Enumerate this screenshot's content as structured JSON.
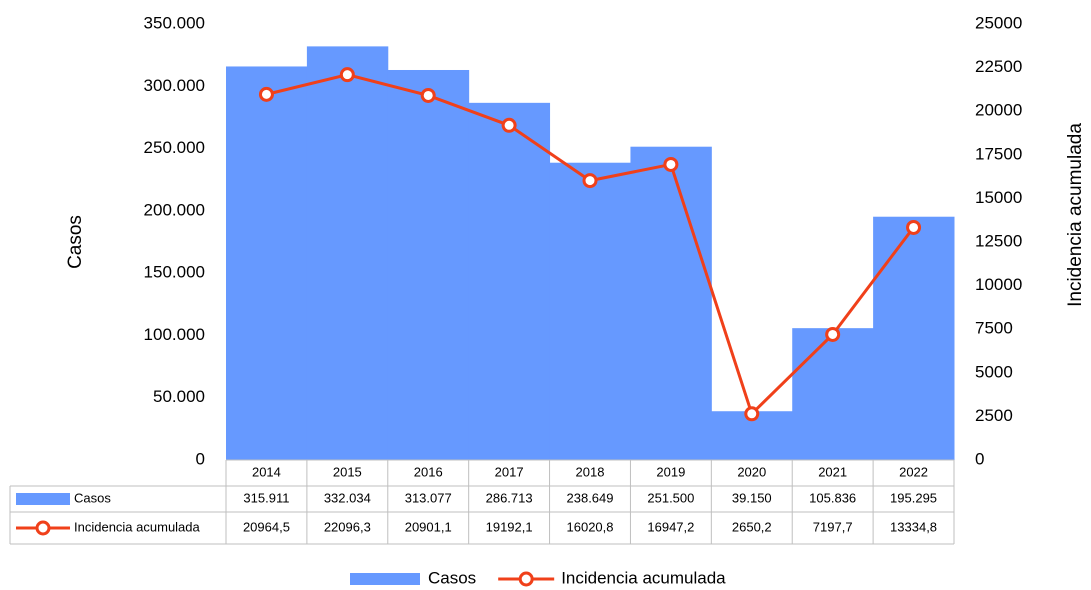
{
  "chart_data": {
    "type": "bar",
    "categories": [
      "2014",
      "2015",
      "2016",
      "2017",
      "2018",
      "2019",
      "2020",
      "2021",
      "2022"
    ],
    "series": [
      {
        "name": "Casos",
        "type": "bar",
        "color": "#6699ff",
        "values": [
          315911,
          332034,
          313077,
          286713,
          238649,
          251500,
          39150,
          105836,
          195295
        ],
        "value_labels": [
          "315.911",
          "332.034",
          "313.077",
          "286.713",
          "238.649",
          "251.500",
          "39.150",
          "105.836",
          "195.295"
        ]
      },
      {
        "name": "Incidencia acumulada",
        "type": "line",
        "axis": "y2",
        "color": "#f0401a",
        "values": [
          20964.5,
          22096.3,
          20901.1,
          19192.1,
          16020.8,
          16947.2,
          2650.2,
          7197.7,
          13334.8
        ],
        "value_labels": [
          "20964,5",
          "22096,3",
          "20901,1",
          "19192,1",
          "16020,8",
          "16947,2",
          "2650,2",
          "7197,7",
          "13334,8"
        ]
      }
    ],
    "y_label": "Casos",
    "y2_label": "Incidencia acumulada",
    "ylim": [
      0,
      350000
    ],
    "yticks": [
      0,
      {
        "value": 50000,
        "label": "50.000"
      },
      {
        "value": 100000,
        "label": "100.000"
      },
      {
        "value": 150000,
        "label": "150.000"
      },
      {
        "value": 200000,
        "label": "200.000"
      },
      {
        "value": 250000,
        "label": "250.000"
      },
      {
        "value": 300000,
        "label": "300.000"
      },
      {
        "value": 350000,
        "label": "350.000"
      }
    ],
    "y2lim": [
      0,
      25000
    ],
    "y2ticks": [
      0,
      2500,
      5000,
      7500,
      10000,
      12500,
      15000,
      17500,
      20000,
      22500,
      25000
    ],
    "grid": false,
    "legend": "bottom"
  }
}
